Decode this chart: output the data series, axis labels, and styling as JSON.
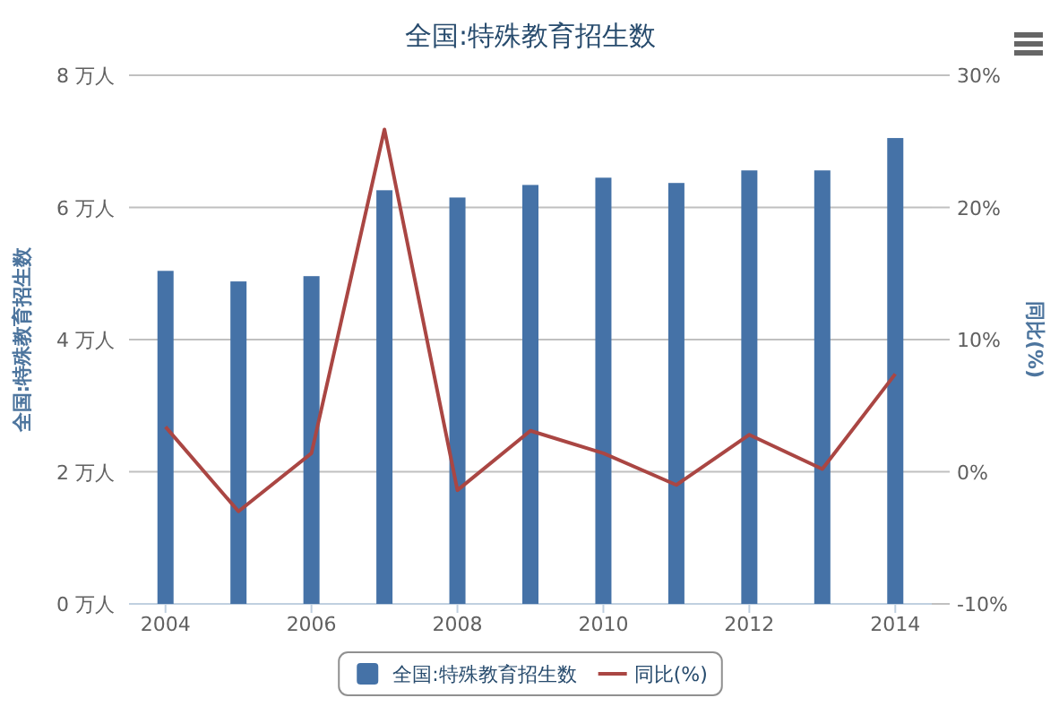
{
  "chart_data": {
    "type": "bar",
    "title": "全国:特殊教育招生数",
    "ylabel": "全国:特殊教育招生数",
    "y2label": "同比(%)",
    "x": [
      2004,
      2005,
      2006,
      2007,
      2008,
      2009,
      2010,
      2011,
      2012,
      2013,
      2014
    ],
    "xlim": [
      2003.5,
      2014.5
    ],
    "xticks": [
      2004,
      2006,
      2008,
      2010,
      2012,
      2014
    ],
    "ylim": [
      0,
      8
    ],
    "yticks": [
      {
        "value": 0,
        "label": "0 万人"
      },
      {
        "value": 2,
        "label": "2 万人"
      },
      {
        "value": 4,
        "label": "4 万人"
      },
      {
        "value": 6,
        "label": "6 万人"
      },
      {
        "value": 8,
        "label": "8 万人"
      }
    ],
    "y2lim": [
      -10,
      30
    ],
    "y2ticks": [
      {
        "value": -10,
        "label": "-10%"
      },
      {
        "value": 0,
        "label": "0%"
      },
      {
        "value": 10,
        "label": "10%"
      },
      {
        "value": 20,
        "label": "20%"
      },
      {
        "value": 30,
        "label": "30%"
      }
    ],
    "grid": "y",
    "legend": "bottom",
    "series": [
      {
        "name": "全国:特殊教育招生数",
        "color": "#4572a7",
        "values": [
          5.04,
          4.88,
          4.96,
          6.26,
          6.15,
          6.34,
          6.45,
          6.37,
          6.56,
          6.56,
          7.05
        ]
      },
      {
        "name": "同比(%)",
        "type": "line",
        "axis": "y2",
        "color": "#aa4643",
        "values": [
          3.4,
          -3.0,
          1.4,
          25.9,
          -1.4,
          3.1,
          1.4,
          -1.0,
          2.8,
          0.2,
          7.4
        ]
      }
    ]
  }
}
